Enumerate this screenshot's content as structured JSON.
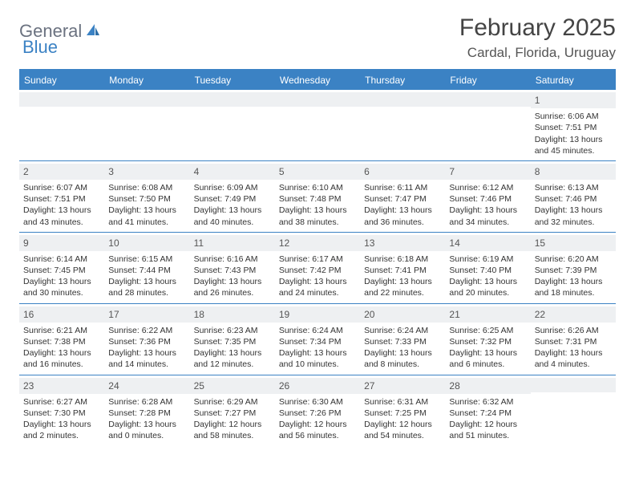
{
  "brand": {
    "part1": "General",
    "part2": "Blue"
  },
  "title": "February 2025",
  "location": "Cardal, Florida, Uruguay",
  "colors": {
    "accent": "#3b82c4",
    "band": "#eef0f2",
    "text": "#333333",
    "logo_gray": "#6b7280",
    "background": "#ffffff"
  },
  "typography": {
    "title_fontsize": 30,
    "location_fontsize": 17,
    "dayhead_fontsize": 12,
    "cell_fontsize": 10.5
  },
  "dayHeaders": [
    "Sunday",
    "Monday",
    "Tuesday",
    "Wednesday",
    "Thursday",
    "Friday",
    "Saturday"
  ],
  "weeks": [
    [
      null,
      null,
      null,
      null,
      null,
      null,
      {
        "n": "1",
        "sunrise": "Sunrise: 6:06 AM",
        "sunset": "Sunset: 7:51 PM",
        "daylight": "Daylight: 13 hours and 45 minutes."
      }
    ],
    [
      {
        "n": "2",
        "sunrise": "Sunrise: 6:07 AM",
        "sunset": "Sunset: 7:51 PM",
        "daylight": "Daylight: 13 hours and 43 minutes."
      },
      {
        "n": "3",
        "sunrise": "Sunrise: 6:08 AM",
        "sunset": "Sunset: 7:50 PM",
        "daylight": "Daylight: 13 hours and 41 minutes."
      },
      {
        "n": "4",
        "sunrise": "Sunrise: 6:09 AM",
        "sunset": "Sunset: 7:49 PM",
        "daylight": "Daylight: 13 hours and 40 minutes."
      },
      {
        "n": "5",
        "sunrise": "Sunrise: 6:10 AM",
        "sunset": "Sunset: 7:48 PM",
        "daylight": "Daylight: 13 hours and 38 minutes."
      },
      {
        "n": "6",
        "sunrise": "Sunrise: 6:11 AM",
        "sunset": "Sunset: 7:47 PM",
        "daylight": "Daylight: 13 hours and 36 minutes."
      },
      {
        "n": "7",
        "sunrise": "Sunrise: 6:12 AM",
        "sunset": "Sunset: 7:46 PM",
        "daylight": "Daylight: 13 hours and 34 minutes."
      },
      {
        "n": "8",
        "sunrise": "Sunrise: 6:13 AM",
        "sunset": "Sunset: 7:46 PM",
        "daylight": "Daylight: 13 hours and 32 minutes."
      }
    ],
    [
      {
        "n": "9",
        "sunrise": "Sunrise: 6:14 AM",
        "sunset": "Sunset: 7:45 PM",
        "daylight": "Daylight: 13 hours and 30 minutes."
      },
      {
        "n": "10",
        "sunrise": "Sunrise: 6:15 AM",
        "sunset": "Sunset: 7:44 PM",
        "daylight": "Daylight: 13 hours and 28 minutes."
      },
      {
        "n": "11",
        "sunrise": "Sunrise: 6:16 AM",
        "sunset": "Sunset: 7:43 PM",
        "daylight": "Daylight: 13 hours and 26 minutes."
      },
      {
        "n": "12",
        "sunrise": "Sunrise: 6:17 AM",
        "sunset": "Sunset: 7:42 PM",
        "daylight": "Daylight: 13 hours and 24 minutes."
      },
      {
        "n": "13",
        "sunrise": "Sunrise: 6:18 AM",
        "sunset": "Sunset: 7:41 PM",
        "daylight": "Daylight: 13 hours and 22 minutes."
      },
      {
        "n": "14",
        "sunrise": "Sunrise: 6:19 AM",
        "sunset": "Sunset: 7:40 PM",
        "daylight": "Daylight: 13 hours and 20 minutes."
      },
      {
        "n": "15",
        "sunrise": "Sunrise: 6:20 AM",
        "sunset": "Sunset: 7:39 PM",
        "daylight": "Daylight: 13 hours and 18 minutes."
      }
    ],
    [
      {
        "n": "16",
        "sunrise": "Sunrise: 6:21 AM",
        "sunset": "Sunset: 7:38 PM",
        "daylight": "Daylight: 13 hours and 16 minutes."
      },
      {
        "n": "17",
        "sunrise": "Sunrise: 6:22 AM",
        "sunset": "Sunset: 7:36 PM",
        "daylight": "Daylight: 13 hours and 14 minutes."
      },
      {
        "n": "18",
        "sunrise": "Sunrise: 6:23 AM",
        "sunset": "Sunset: 7:35 PM",
        "daylight": "Daylight: 13 hours and 12 minutes."
      },
      {
        "n": "19",
        "sunrise": "Sunrise: 6:24 AM",
        "sunset": "Sunset: 7:34 PM",
        "daylight": "Daylight: 13 hours and 10 minutes."
      },
      {
        "n": "20",
        "sunrise": "Sunrise: 6:24 AM",
        "sunset": "Sunset: 7:33 PM",
        "daylight": "Daylight: 13 hours and 8 minutes."
      },
      {
        "n": "21",
        "sunrise": "Sunrise: 6:25 AM",
        "sunset": "Sunset: 7:32 PM",
        "daylight": "Daylight: 13 hours and 6 minutes."
      },
      {
        "n": "22",
        "sunrise": "Sunrise: 6:26 AM",
        "sunset": "Sunset: 7:31 PM",
        "daylight": "Daylight: 13 hours and 4 minutes."
      }
    ],
    [
      {
        "n": "23",
        "sunrise": "Sunrise: 6:27 AM",
        "sunset": "Sunset: 7:30 PM",
        "daylight": "Daylight: 13 hours and 2 minutes."
      },
      {
        "n": "24",
        "sunrise": "Sunrise: 6:28 AM",
        "sunset": "Sunset: 7:28 PM",
        "daylight": "Daylight: 13 hours and 0 minutes."
      },
      {
        "n": "25",
        "sunrise": "Sunrise: 6:29 AM",
        "sunset": "Sunset: 7:27 PM",
        "daylight": "Daylight: 12 hours and 58 minutes."
      },
      {
        "n": "26",
        "sunrise": "Sunrise: 6:30 AM",
        "sunset": "Sunset: 7:26 PM",
        "daylight": "Daylight: 12 hours and 56 minutes."
      },
      {
        "n": "27",
        "sunrise": "Sunrise: 6:31 AM",
        "sunset": "Sunset: 7:25 PM",
        "daylight": "Daylight: 12 hours and 54 minutes."
      },
      {
        "n": "28",
        "sunrise": "Sunrise: 6:32 AM",
        "sunset": "Sunset: 7:24 PM",
        "daylight": "Daylight: 12 hours and 51 minutes."
      },
      null
    ]
  ]
}
